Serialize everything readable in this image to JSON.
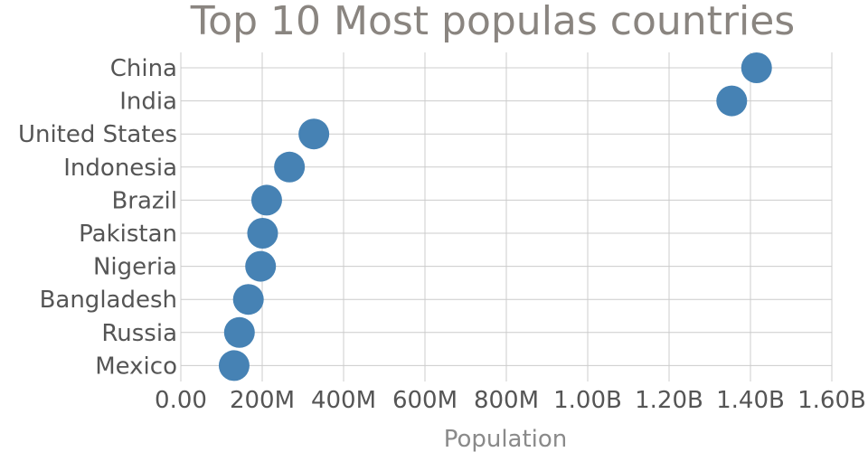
{
  "chart_data": {
    "type": "scatter",
    "title": "Top 10 Most populas countries",
    "xlabel": "Population",
    "ylabel": "",
    "xlim": [
      0,
      1600000000
    ],
    "x_ticks": [
      {
        "value": 0,
        "label": "0.00"
      },
      {
        "value": 200000000,
        "label": "200M"
      },
      {
        "value": 400000000,
        "label": "400M"
      },
      {
        "value": 600000000,
        "label": "600M"
      },
      {
        "value": 800000000,
        "label": "800M"
      },
      {
        "value": 1000000000,
        "label": "1.00B"
      },
      {
        "value": 1200000000,
        "label": "1.20B"
      },
      {
        "value": 1400000000,
        "label": "1.40B"
      },
      {
        "value": 1600000000,
        "label": "1.60B"
      }
    ],
    "categories": [
      "China",
      "India",
      "United States",
      "Indonesia",
      "Brazil",
      "Pakistan",
      "Nigeria",
      "Bangladesh",
      "Russia",
      "Mexico"
    ],
    "values": [
      1415000000,
      1354000000,
      327000000,
      267000000,
      211000000,
      201000000,
      196000000,
      166000000,
      144000000,
      131000000
    ],
    "grid": true,
    "marker_color": "#4682b4"
  }
}
